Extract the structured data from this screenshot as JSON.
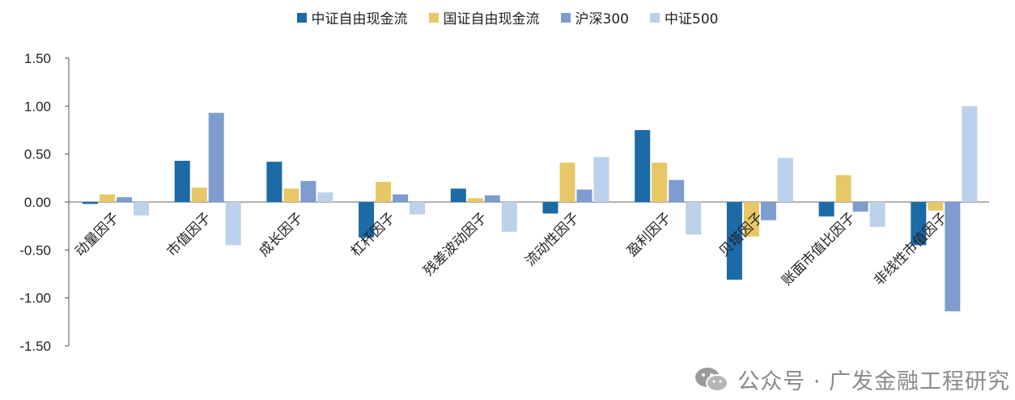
{
  "legend": {
    "items": [
      {
        "label": "中证自由现金流",
        "color": "#1c6aa6"
      },
      {
        "label": "国证自由现金流",
        "color": "#e8c766"
      },
      {
        "label": "沪深300",
        "color": "#7e9cce"
      },
      {
        "label": "中证500",
        "color": "#bcd1ea"
      }
    ]
  },
  "watermark": {
    "text": "公众号 · 广发金融工程研究",
    "icon": "wechat-icon"
  },
  "chart_data": {
    "type": "bar",
    "title": "",
    "xlabel": "",
    "ylabel": "",
    "ylim": [
      -1.5,
      1.5
    ],
    "yticks": [
      "1.50",
      "1.00",
      "0.50",
      "0.00",
      "-0.50",
      "-1.00",
      "-1.50"
    ],
    "grid": false,
    "legend_position": "top",
    "categories": [
      "动量因子",
      "市值因子",
      "成长因子",
      "杠杆因子",
      "残差波动因子",
      "流动性因子",
      "盈利因子",
      "贝塔因子",
      "账面市值比因子",
      "非线性市值因子"
    ],
    "series": [
      {
        "name": "中证自由现金流",
        "color": "#1c6aa6",
        "values": [
          -0.02,
          0.43,
          0.42,
          -0.37,
          0.14,
          -0.12,
          0.75,
          -0.81,
          -0.15,
          -0.45
        ]
      },
      {
        "name": "国证自由现金流",
        "color": "#e8c766",
        "values": [
          0.08,
          0.15,
          0.14,
          0.21,
          0.04,
          0.41,
          0.41,
          -0.36,
          0.28,
          -0.09
        ]
      },
      {
        "name": "沪深300",
        "color": "#7e9cce",
        "values": [
          0.05,
          0.93,
          0.22,
          0.08,
          0.07,
          0.13,
          0.23,
          -0.19,
          -0.1,
          -1.14
        ]
      },
      {
        "name": "中证500",
        "color": "#bcd1ea",
        "values": [
          -0.14,
          -0.45,
          0.1,
          -0.13,
          -0.31,
          0.47,
          -0.34,
          0.46,
          -0.26,
          1.0
        ]
      }
    ]
  }
}
